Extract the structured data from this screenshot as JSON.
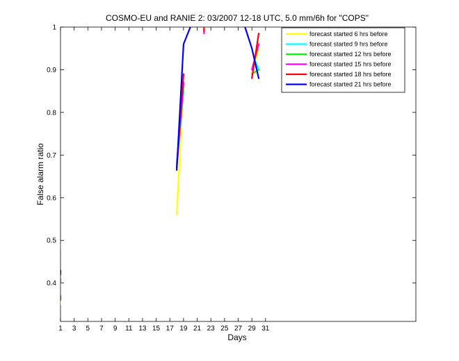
{
  "chart_data": {
    "type": "line",
    "title": "COSMO-EU and RANIE 2: 03/2007 12-18 UTC, 5.0 mm/6h for \"COPS\"",
    "xlabel": "Days",
    "ylabel": "False alarm ratio",
    "xlim": [
      1,
      53
    ],
    "ylim": [
      0.31,
      1.0
    ],
    "xticks": [
      1,
      3,
      5,
      7,
      9,
      11,
      13,
      15,
      17,
      19,
      21,
      23,
      25,
      27,
      29,
      31
    ],
    "yticks": [
      0.4,
      0.5,
      0.6,
      0.7,
      0.8,
      0.9,
      1
    ],
    "legend_position": "top-right",
    "grid": false,
    "series": [
      {
        "name": "forecast started 6 hrs before",
        "color": "#ffff00",
        "segments": [
          [
            [
              1,
              0.35
            ],
            [
              1,
              0.36
            ]
          ],
          [
            [
              18,
              0.56
            ],
            [
              19,
              0.87
            ]
          ],
          [
            [
              29.5,
              0.92
            ],
            [
              30,
              0.95
            ]
          ]
        ]
      },
      {
        "name": "forecast started 9 hrs before",
        "color": "#00ffff",
        "segments": [
          [
            [
              1,
              0.48
            ],
            [
              1,
              0.49
            ]
          ],
          [
            [
              18,
              0.67
            ],
            [
              19,
              0.85
            ]
          ],
          [
            [
              29.5,
              0.92
            ],
            [
              30,
              0.9
            ]
          ]
        ]
      },
      {
        "name": "forecast started 12 hrs before",
        "color": "#00ff00",
        "segments": [
          [
            [
              18,
              0.68
            ],
            [
              19,
              0.86
            ]
          ],
          [
            [
              29,
              0.89
            ],
            [
              30,
              0.9
            ]
          ]
        ]
      },
      {
        "name": "forecast started 15 hrs before",
        "color": "#ff00ff",
        "segments": [
          [
            [
              1,
              0.4
            ],
            [
              1,
              0.41
            ]
          ],
          [
            [
              22,
              0.985
            ],
            [
              22,
              0.995
            ]
          ],
          [
            [
              18,
              0.67
            ],
            [
              19,
              0.87
            ]
          ],
          [
            [
              29,
              0.9
            ],
            [
              30,
              0.96
            ]
          ]
        ]
      },
      {
        "name": "forecast started 18 hrs before",
        "color": "#ff0000",
        "segments": [
          [
            [
              1,
              0.36
            ],
            [
              1,
              0.37
            ]
          ],
          [
            [
              22,
              0.99
            ],
            [
              22,
              1.0
            ]
          ],
          [
            [
              18,
              0.67
            ],
            [
              19,
              0.89
            ]
          ],
          [
            [
              29,
              0.88
            ],
            [
              30,
              0.985
            ]
          ]
        ]
      },
      {
        "name": "forecast started 21 hrs before",
        "color": "#0000ff",
        "segments": [
          [
            [
              1,
              0.42
            ],
            [
              1,
              0.43
            ]
          ],
          [
            [
              3,
              1.0
            ],
            [
              3,
              1.0
            ]
          ],
          [
            [
              18,
              0.665
            ],
            [
              19,
              0.96
            ],
            [
              20,
              1.0
            ]
          ],
          [
            [
              28,
              1.0
            ],
            [
              29,
              0.95
            ],
            [
              30,
              0.88
            ]
          ]
        ]
      }
    ]
  }
}
